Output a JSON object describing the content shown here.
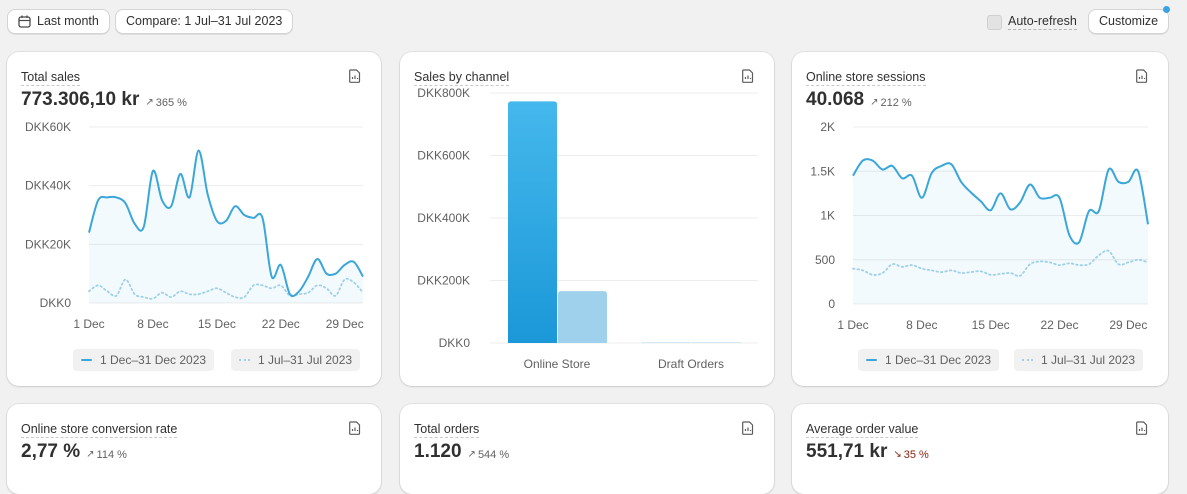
{
  "toolbar": {
    "date_range_label": "Last month",
    "compare_label": "Compare: 1 Jul–31 Jul 2023",
    "auto_refresh_label": "Auto-refresh",
    "customize_label": "Customize"
  },
  "colors": {
    "primary_line": "#3aa6d9",
    "comparison_line": "#9fd0e8",
    "bar_primary": "#1e9fde",
    "bar_comparison": "#9fd0ec",
    "negative": "#8e1f0b"
  },
  "legend": {
    "current": "1 Dec–31 Dec 2023",
    "previous": "1 Jul–31 Jul 2023"
  },
  "cards": {
    "total_sales": {
      "title": "Total sales",
      "value": "773.306,10 kr",
      "change": "365 %",
      "direction": "up"
    },
    "sales_by_channel": {
      "title": "Sales by channel"
    },
    "sessions": {
      "title": "Online store sessions",
      "value": "40.068",
      "change": "212 %",
      "direction": "up"
    },
    "conversion": {
      "title": "Online store conversion rate",
      "value": "2,77 %",
      "change": "114 %",
      "direction": "up"
    },
    "orders": {
      "title": "Total orders",
      "value": "1.120",
      "change": "544 %",
      "direction": "up"
    },
    "aov": {
      "title": "Average order value",
      "value": "551,71 kr",
      "change": "35 %",
      "direction": "down"
    }
  },
  "chart_data": [
    {
      "type": "line",
      "title": "Total sales",
      "x_ticks": [
        "1 Dec",
        "8 Dec",
        "15 Dec",
        "22 Dec",
        "29 Dec"
      ],
      "y_ticks": [
        "DKK0",
        "DKK20K",
        "DKK40K",
        "DKK60K"
      ],
      "ylim": [
        0,
        60000
      ],
      "x": [
        1,
        2,
        3,
        4,
        5,
        6,
        7,
        8,
        9,
        10,
        11,
        12,
        13,
        14,
        15,
        16,
        17,
        18,
        19,
        20,
        21,
        22,
        23,
        24,
        25,
        26,
        27,
        28,
        29,
        30,
        31
      ],
      "series": [
        {
          "name": "1 Dec–31 Dec 2023",
          "values": [
            24000,
            35000,
            36000,
            36000,
            34000,
            27000,
            26000,
            45000,
            35000,
            33000,
            44000,
            36000,
            52000,
            37000,
            28000,
            28000,
            33000,
            30000,
            29000,
            29000,
            9000,
            13000,
            3000,
            4000,
            9000,
            15000,
            10000,
            10000,
            13000,
            14000,
            9000
          ]
        },
        {
          "name": "1 Jul–31 Jul 2023",
          "values": [
            4000,
            6000,
            4000,
            2500,
            8000,
            3000,
            2000,
            1500,
            3500,
            2000,
            4000,
            3000,
            3000,
            4000,
            5000,
            3500,
            2000,
            2000,
            6000,
            6000,
            5000,
            6000,
            2500,
            3000,
            3500,
            6000,
            5000,
            2500,
            8000,
            7000,
            3500
          ]
        }
      ]
    },
    {
      "type": "bar",
      "title": "Sales by channel",
      "categories": [
        "Online Store",
        "Draft Orders"
      ],
      "y_ticks": [
        "DKK0",
        "DKK200K",
        "DKK400K",
        "DKK600K",
        "DKK800K"
      ],
      "ylim": [
        0,
        800000
      ],
      "series": [
        {
          "name": "1 Dec–31 Dec 2023",
          "values": [
            773306,
            0
          ]
        },
        {
          "name": "1 Jul–31 Jul 2023",
          "values": [
            166000,
            0
          ]
        }
      ]
    },
    {
      "type": "line",
      "title": "Online store sessions",
      "x_ticks": [
        "1 Dec",
        "8 Dec",
        "15 Dec",
        "22 Dec",
        "29 Dec"
      ],
      "y_ticks": [
        "0",
        "500",
        "1K",
        "1.5K",
        "2K"
      ],
      "ylim": [
        0,
        2000
      ],
      "x": [
        1,
        2,
        3,
        4,
        5,
        6,
        7,
        8,
        9,
        10,
        11,
        12,
        13,
        14,
        15,
        16,
        17,
        18,
        19,
        20,
        21,
        22,
        23,
        24,
        25,
        26,
        27,
        28,
        29,
        30,
        31
      ],
      "series": [
        {
          "name": "1 Dec–31 Dec 2023",
          "values": [
            1450,
            1620,
            1620,
            1520,
            1560,
            1420,
            1450,
            1200,
            1480,
            1560,
            1580,
            1380,
            1260,
            1160,
            1060,
            1250,
            1070,
            1150,
            1350,
            1200,
            1200,
            1200,
            780,
            700,
            1050,
            1050,
            1520,
            1380,
            1380,
            1500,
            900
          ]
        },
        {
          "name": "1 Jul–31 Jul 2023",
          "values": [
            400,
            380,
            330,
            350,
            450,
            420,
            440,
            400,
            380,
            360,
            380,
            350,
            360,
            370,
            330,
            340,
            350,
            320,
            450,
            480,
            470,
            440,
            460,
            440,
            450,
            550,
            600,
            450,
            470,
            500,
            470
          ]
        }
      ]
    }
  ]
}
